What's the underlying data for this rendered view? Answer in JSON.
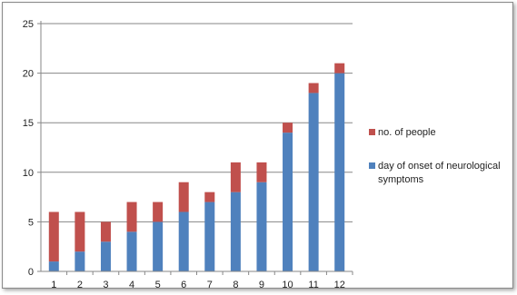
{
  "chart_data": {
    "type": "bar",
    "stacked": true,
    "categories": [
      "1",
      "2",
      "3",
      "4",
      "5",
      "6",
      "7",
      "8",
      "9",
      "10",
      "11",
      "12"
    ],
    "series": [
      {
        "name": "day of onset of neurological symptoms",
        "color": "#4f81bd",
        "values": [
          1,
          2,
          3,
          4,
          5,
          6,
          7,
          8,
          9,
          14,
          18,
          20
        ]
      },
      {
        "name": "no. of people",
        "color": "#c0504d",
        "values": [
          5,
          4,
          2,
          3,
          2,
          3,
          1,
          3,
          2,
          1,
          1,
          1
        ]
      }
    ],
    "ylim": [
      0,
      25
    ],
    "yticks": [
      "0",
      "5",
      "10",
      "15",
      "20",
      "25"
    ],
    "grid": true,
    "legend_position": "right",
    "legend": [
      {
        "label": "no. of people",
        "color": "#c0504d"
      },
      {
        "label": "day of onset of neurological",
        "label_line2": "symptoms",
        "color": "#4f81bd"
      }
    ],
    "title": "",
    "xlabel": "",
    "ylabel": ""
  }
}
